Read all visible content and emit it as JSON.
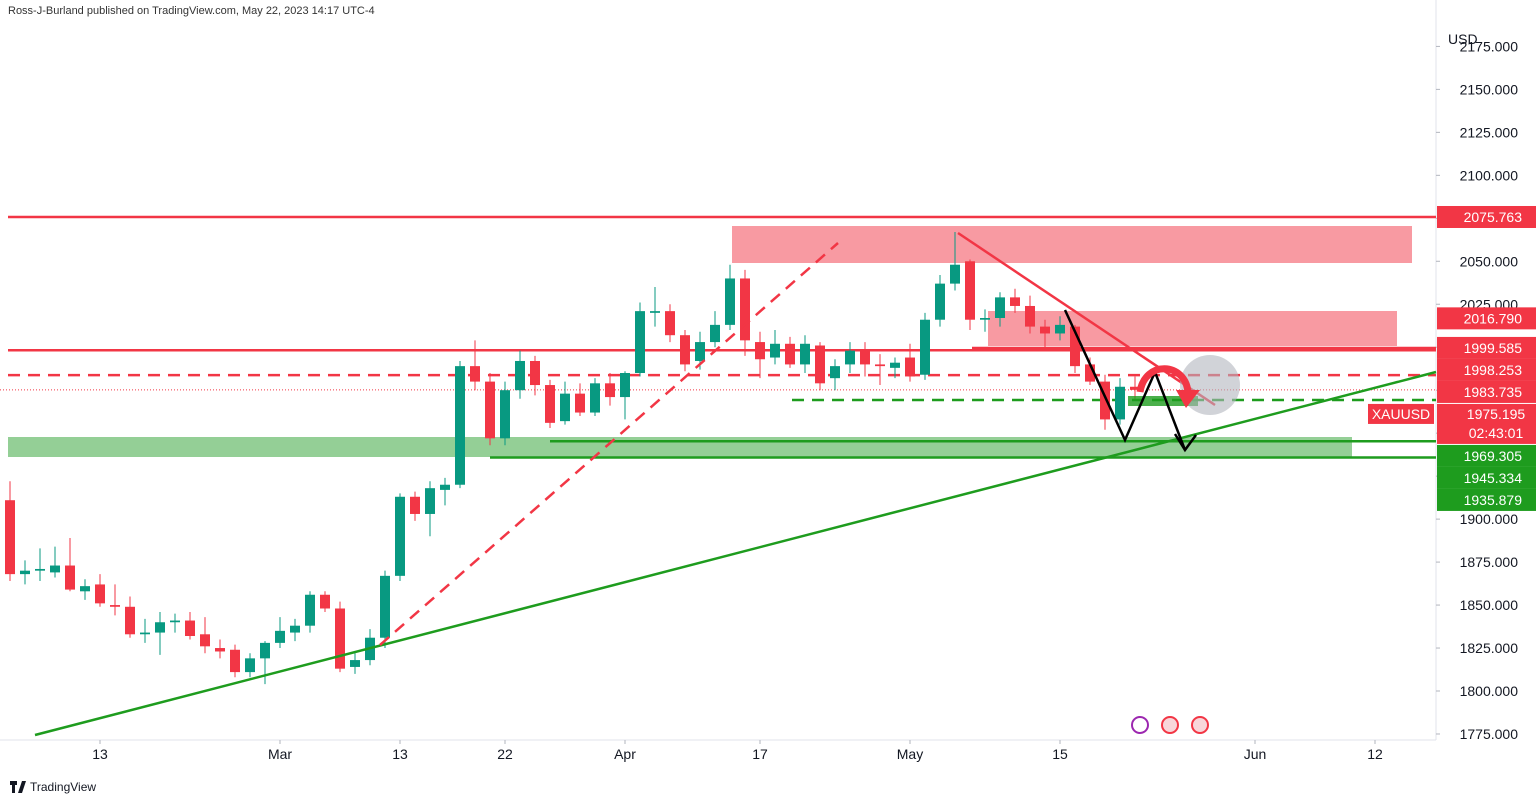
{
  "header": {
    "publisher": "Ross-J-Burland published on TradingView.com, May 22, 2023 14:17 UTC-4"
  },
  "chart_data": {
    "type": "candlestick",
    "symbol": "XAUUSD",
    "currency": "USD",
    "countdown": "02:43:01",
    "up_color": "#089981",
    "down_color": "#f23645",
    "open": [
      1911,
      1868,
      1870,
      1869,
      1873,
      1858,
      1862,
      1850,
      1849,
      1833,
      1834,
      1840,
      1841,
      1833,
      1825,
      1824,
      1811,
      1819,
      1828,
      1834,
      1838,
      1856,
      1848,
      1814,
      1818,
      1831,
      1867,
      1913,
      1903,
      1917,
      1920,
      1989,
      1980,
      1947,
      1975,
      1992,
      1978,
      1957,
      1973,
      1962,
      1979,
      1971,
      1985,
      2020,
      2021,
      2007,
      1992,
      2003,
      2013,
      2040,
      2003,
      1994,
      2002,
      1990,
      2001,
      1982,
      1990,
      1998,
      1990,
      1988,
      1994,
      1984,
      2016,
      2037,
      2050,
      2016,
      2017,
      2029,
      2024,
      2012,
      2008,
      2012,
      1990,
      1980,
      1958,
      1977
    ],
    "high": [
      1922,
      1876,
      1883,
      1884,
      1889,
      1865,
      1868,
      1862,
      1855,
      1842,
      1846,
      1845,
      1846,
      1843,
      1830,
      1827,
      1822,
      1829,
      1843,
      1842,
      1858,
      1858,
      1852,
      1822,
      1836,
      1870,
      1915,
      1916,
      1922,
      1924,
      1992,
      2004,
      1985,
      1980,
      1998,
      1995,
      1981,
      1980,
      1979,
      1982,
      1985,
      1986,
      2026,
      2035,
      2025,
      2010,
      2009,
      2021,
      2048,
      2045,
      2009,
      2010,
      2006,
      2007,
      2003,
      1993,
      2003,
      2003,
      1996,
      1994,
      2002,
      2020,
      2042,
      2067,
      2051,
      2022,
      2032,
      2034,
      2030,
      2016,
      2018,
      2013,
      1994,
      1984,
      1982,
      1983
    ],
    "low": [
      1864,
      1862,
      1864,
      1866,
      1858,
      1853,
      1849,
      1844,
      1831,
      1828,
      1821,
      1834,
      1830,
      1822,
      1819,
      1808,
      1808,
      1804,
      1825,
      1829,
      1834,
      1846,
      1811,
      1810,
      1815,
      1825,
      1864,
      1899,
      1890,
      1908,
      1918,
      1975,
      1943,
      1943,
      1970,
      1972,
      1953,
      1955,
      1960,
      1960,
      1966,
      1958,
      1983,
      2012,
      2003,
      1986,
      1987,
      2000,
      2010,
      1995,
      1982,
      1990,
      1988,
      1985,
      1975,
      1975,
      1985,
      1983,
      1978,
      1982,
      1980,
      1981,
      2012,
      2033,
      2010,
      2009,
      2012,
      2020,
      2008,
      2000,
      2004,
      1985,
      1978,
      1952,
      1955,
      1970
    ],
    "close": [
      1868,
      1870,
      1871,
      1873,
      1859,
      1861,
      1851,
      1849,
      1833,
      1834,
      1840,
      1841,
      1832,
      1826,
      1823,
      1811,
      1819,
      1828,
      1835,
      1838,
      1856,
      1848,
      1813,
      1818,
      1831,
      1867,
      1913,
      1903,
      1918,
      1920,
      1989,
      1980,
      1947,
      1975,
      1992,
      1978,
      1956,
      1973,
      1962,
      1979,
      1971,
      1985,
      2021,
      2021,
      2007,
      1990,
      2003,
      2013,
      2040,
      2004,
      1993,
      2002,
      1990,
      2002,
      1979,
      1989,
      1998,
      1990,
      1989,
      1991,
      1983,
      2016,
      2037,
      2048,
      2016,
      2017,
      2029,
      2024,
      2012,
      2008,
      2013,
      1989,
      1980,
      1958,
      1977,
      1975.195
    ],
    "x_labels": [
      {
        "value": 6,
        "label": "13"
      },
      {
        "value": 18,
        "label": "Mar"
      },
      {
        "value": 26,
        "label": "13"
      },
      {
        "value": 33,
        "label": "22"
      },
      {
        "value": 41,
        "label": "Apr"
      },
      {
        "value": 50,
        "label": "17"
      },
      {
        "value": 60,
        "label": "May"
      },
      {
        "value": 70,
        "label": "15"
      },
      {
        "value": 83,
        "label": "Jun"
      },
      {
        "value": 91,
        "label": "12"
      }
    ],
    "ylim": [
      1771.5,
      2202
    ],
    "yticks": [
      {
        "value": 1775,
        "label": "1775.000"
      },
      {
        "value": 1800,
        "label": "1800.000"
      },
      {
        "value": 1825,
        "label": "1825.000"
      },
      {
        "value": 1850,
        "label": "1850.000"
      },
      {
        "value": 1875,
        "label": "1875.000"
      },
      {
        "value": 1900,
        "label": "1900.000"
      },
      {
        "value": 1925,
        "label": "1925.000"
      },
      {
        "value": 1950,
        "label": "1950.000"
      },
      {
        "value": 1975,
        "label": "1975.000"
      },
      {
        "value": 2000,
        "label": "2000.000"
      },
      {
        "value": 2025,
        "label": "2025.000"
      },
      {
        "value": 2050,
        "label": "2050.000"
      },
      {
        "value": 2075,
        "label": "2075.000"
      },
      {
        "value": 2100,
        "label": "2100.000"
      },
      {
        "value": 2125,
        "label": "2125.000"
      },
      {
        "value": 2150,
        "label": "2150.000"
      },
      {
        "value": 2175,
        "label": "2175.000"
      }
    ],
    "price_labels": [
      {
        "value": 2075.763,
        "label": "2075.763",
        "color": "#f23645",
        "line": "solid"
      },
      {
        "value": 2016.79,
        "label": "2016.790",
        "color": "#f23645",
        "line": "none"
      },
      {
        "value": 1999.585,
        "label": "1999.585",
        "color": "#f23645",
        "line": "solid"
      },
      {
        "value": 1998.253,
        "label": "1998.253",
        "color": "#f23645",
        "line": "solid"
      },
      {
        "value": 1983.735,
        "label": "1983.735",
        "color": "#f23645",
        "line": "dashed"
      },
      {
        "value": 1969.305,
        "label": "1969.305",
        "color": "#1e9c1e",
        "line": "dashed"
      },
      {
        "value": 1945.334,
        "label": "1945.334",
        "color": "#1e9c1e",
        "line": "solid"
      },
      {
        "value": 1935.879,
        "label": "1935.879",
        "color": "#1e9c1e",
        "line": "solid"
      }
    ]
  },
  "footer": {
    "brand": "TradingView"
  }
}
